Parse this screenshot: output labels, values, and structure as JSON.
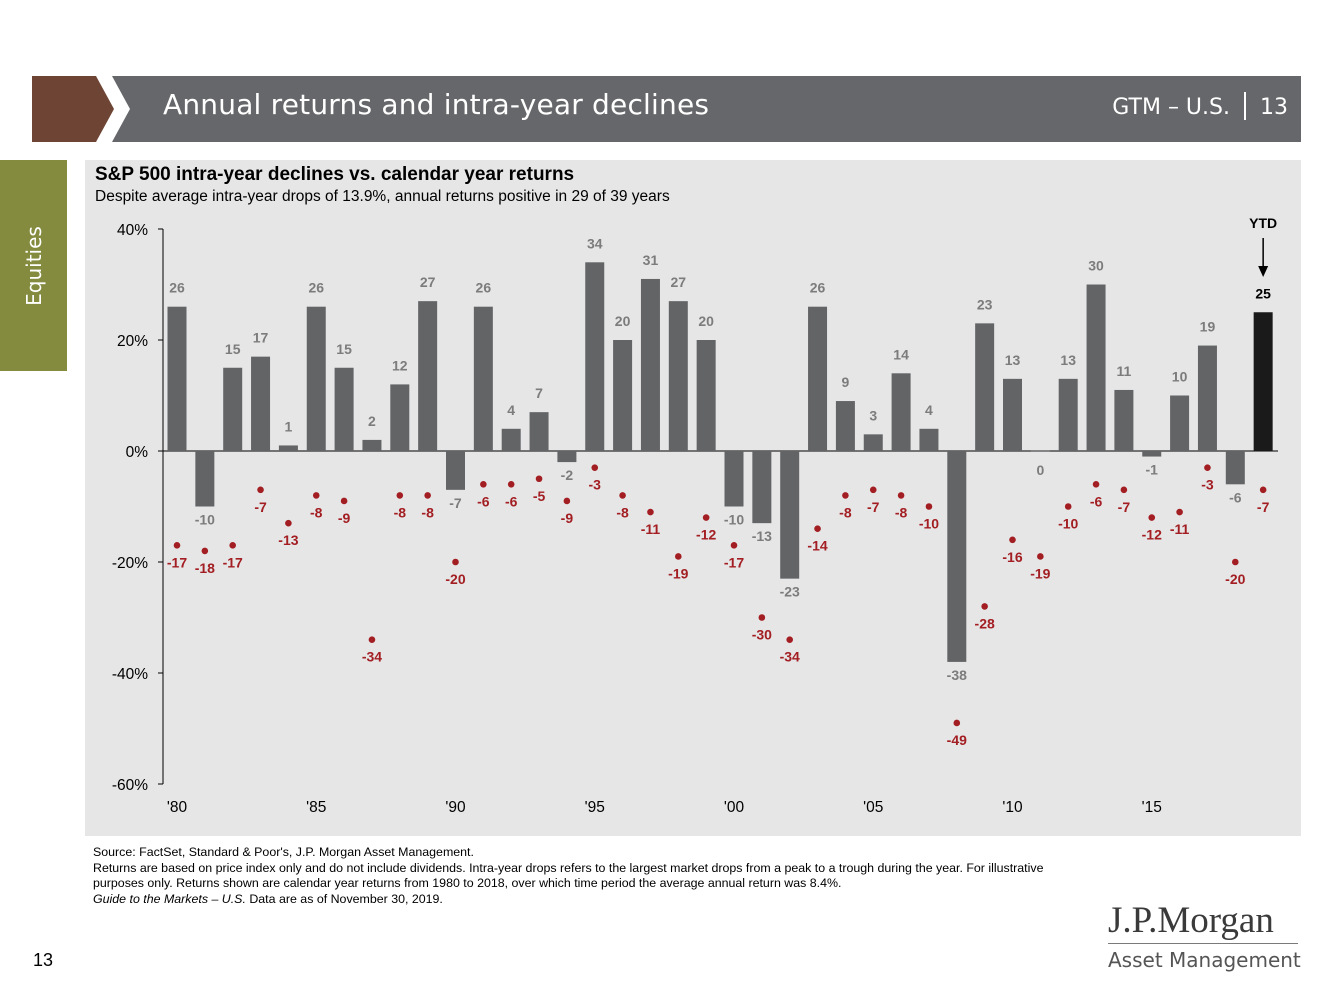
{
  "header": {
    "title": "Annual returns and intra-year declines",
    "gtm": "GTM – U.S.",
    "page": "13",
    "brand_color": "#6e4535",
    "bar_color": "#66676a"
  },
  "side_tab": {
    "label": "Equities",
    "color": "#848b3f"
  },
  "footer": {
    "source": "Source: FactSet, Standard & Poor's, J.P. Morgan Asset Management.",
    "notes": "Returns are based on price index only and do not include dividends. Intra-year drops refers to the largest market drops from a peak to a trough during the year. For illustrative purposes only. Returns shown are calendar year returns from 1980 to 2018, over which time period the average annual return was 8.4%.",
    "guide_italic": "Guide to the Markets – U.S.",
    "guide_rest": " Data are as of November 30, 2019.",
    "page_number": "13",
    "logo_name": "J.P.Morgan",
    "logo_sub": "Asset Management"
  },
  "chart_data": {
    "type": "bar",
    "title": "S&P 500 intra-year declines vs. calendar year returns",
    "subtitle": "Despite average intra-year drops of 13.9%, annual returns positive in 29 of 39 years",
    "x": [
      "1980",
      "1981",
      "1982",
      "1983",
      "1984",
      "1985",
      "1986",
      "1987",
      "1988",
      "1989",
      "1990",
      "1991",
      "1992",
      "1993",
      "1994",
      "1995",
      "1996",
      "1997",
      "1998",
      "1999",
      "2000",
      "2001",
      "2002",
      "2003",
      "2004",
      "2005",
      "2006",
      "2007",
      "2008",
      "2009",
      "2010",
      "2011",
      "2012",
      "2013",
      "2014",
      "2015",
      "2016",
      "2017",
      "2018",
      "YTD"
    ],
    "x_tick_labels": [
      "'80",
      "'85",
      "'90",
      "'95",
      "'00",
      "'05",
      "'10",
      "'15"
    ],
    "y_tick_labels": [
      "40%",
      "20%",
      "0%",
      "-20%",
      "-40%",
      "-60%"
    ],
    "ylim": [
      -60,
      40
    ],
    "y_ticks": [
      40,
      20,
      0,
      -20,
      -40,
      -60
    ],
    "series": [
      {
        "kind": "bar",
        "color": "#636466",
        "values": [
          26,
          -10,
          15,
          17,
          1,
          26,
          15,
          2,
          12,
          27,
          -7,
          26,
          4,
          7,
          -2,
          34,
          20,
          31,
          27,
          20,
          -10,
          -13,
          -23,
          26,
          9,
          3,
          14,
          4,
          -38,
          23,
          13,
          0,
          13,
          30,
          11,
          -1,
          10,
          19,
          -6,
          25
        ]
      },
      {
        "kind": "dot",
        "color": "#a31e22",
        "values": [
          -17,
          -18,
          -17,
          -7,
          -13,
          -8,
          -9,
          -34,
          -8,
          -8,
          -20,
          -6,
          -6,
          -5,
          -9,
          -3,
          -8,
          -11,
          -19,
          -12,
          -17,
          -30,
          -34,
          -14,
          -8,
          -7,
          -8,
          -10,
          -49,
          -28,
          -16,
          -19,
          -10,
          -6,
          -7,
          -12,
          -11,
          -3,
          -20,
          -7
        ]
      }
    ],
    "ytd_label": "YTD",
    "ytd_color": "#1a1a1a",
    "grid": false
  }
}
